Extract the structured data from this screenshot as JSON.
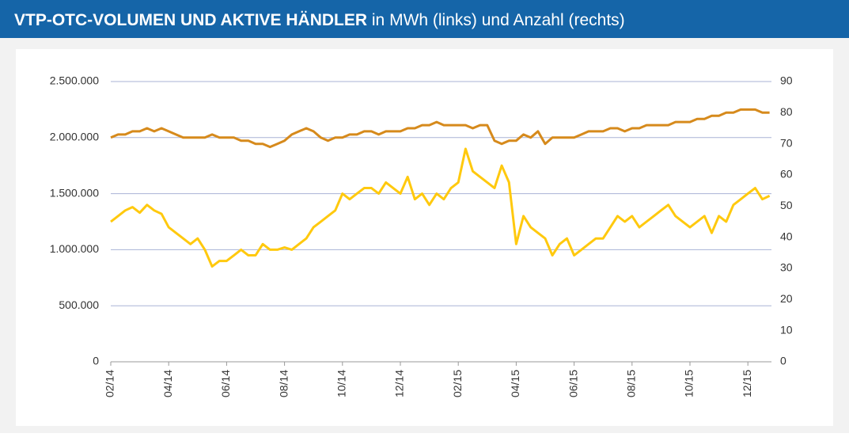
{
  "chart_data": {
    "type": "line",
    "title": "VTP-OTC-VOLUMEN UND AKTIVE HÄNDLER",
    "subtitle": "in MWh (links) und Anzahl (rechts)",
    "categories": [
      "02/14",
      null,
      null,
      null,
      null,
      null,
      null,
      null,
      "04/14",
      null,
      null,
      null,
      null,
      null,
      null,
      null,
      "06/14",
      null,
      null,
      null,
      null,
      null,
      null,
      null,
      "08/14",
      null,
      null,
      null,
      null,
      null,
      null,
      null,
      "10/14",
      null,
      null,
      null,
      null,
      null,
      null,
      null,
      "12/14",
      null,
      null,
      null,
      null,
      null,
      null,
      null,
      "02/15",
      null,
      null,
      null,
      null,
      null,
      null,
      null,
      "04/15",
      null,
      null,
      null,
      null,
      null,
      null,
      null,
      "06/15",
      null,
      null,
      null,
      null,
      null,
      null,
      null,
      "08/15",
      null,
      null,
      null,
      null,
      null,
      null,
      null,
      "10/15",
      null,
      null,
      null,
      null,
      null,
      null,
      null,
      "12/15",
      null,
      null,
      null
    ],
    "series": [
      {
        "color": "#ffc90e",
        "values": [
          1250000,
          1300000,
          1350000,
          1380000,
          1330000,
          1400000,
          1350000,
          1320000,
          1200000,
          1150000,
          1100000,
          1050000,
          1100000,
          1000000,
          850000,
          900000,
          900000,
          950000,
          1000000,
          950000,
          950000,
          1050000,
          1000000,
          1000000,
          1020000,
          1000000,
          1050000,
          1100000,
          1200000,
          1250000,
          1300000,
          1350000,
          1500000,
          1450000,
          1500000,
          1550000,
          1550000,
          1500000,
          1600000,
          1550000,
          1500000,
          1650000,
          1450000,
          1500000,
          1400000,
          1500000,
          1450000,
          1550000,
          1600000,
          1900000,
          1700000,
          1650000,
          1600000,
          1550000,
          1750000,
          1600000,
          1050000,
          1300000,
          1200000,
          1150000,
          1100000,
          950000,
          1050000,
          1100000,
          950000,
          1000000,
          1050000,
          1100000,
          1100000,
          1200000,
          1300000,
          1250000,
          1300000,
          1200000,
          1250000,
          1300000,
          1350000,
          1400000,
          1300000,
          1250000,
          1200000,
          1250000,
          1300000,
          1150000,
          1300000,
          1250000,
          1400000,
          1450000,
          1500000,
          1550000,
          1450000,
          1480000
        ]
      },
      {
        "color": "#d68a1c",
        "axis": "y2",
        "values": [
          72,
          73,
          73,
          74,
          74,
          75,
          74,
          75,
          74,
          73,
          72,
          72,
          72,
          72,
          73,
          72,
          72,
          72,
          71,
          71,
          70,
          70,
          69,
          70,
          71,
          73,
          74,
          75,
          74,
          72,
          71,
          72,
          72,
          73,
          73,
          74,
          74,
          73,
          74,
          74,
          74,
          75,
          75,
          76,
          76,
          77,
          76,
          76,
          76,
          76,
          75,
          76,
          76,
          71,
          70,
          71,
          71,
          73,
          72,
          74,
          70,
          72,
          72,
          72,
          72,
          73,
          74,
          74,
          74,
          75,
          75,
          74,
          75,
          75,
          76,
          76,
          76,
          76,
          77,
          77,
          77,
          78,
          78,
          79,
          79,
          80,
          80,
          81,
          81,
          81,
          80,
          80
        ]
      }
    ],
    "ylim": [
      0,
      2500000
    ],
    "yticks": [
      0,
      {
        "value": 500000,
        "label": "500.000"
      },
      {
        "value": 1000000,
        "label": "1.000.000"
      },
      {
        "value": 1500000,
        "label": "1.500.000"
      },
      {
        "value": 2000000,
        "label": "2.000.000"
      },
      {
        "value": 2500000,
        "label": "2.500.000"
      }
    ],
    "y2lim": [
      0,
      90
    ],
    "y2ticks": [
      0,
      10,
      20,
      30,
      40,
      50,
      60,
      70,
      80,
      90
    ],
    "grid": true
  }
}
